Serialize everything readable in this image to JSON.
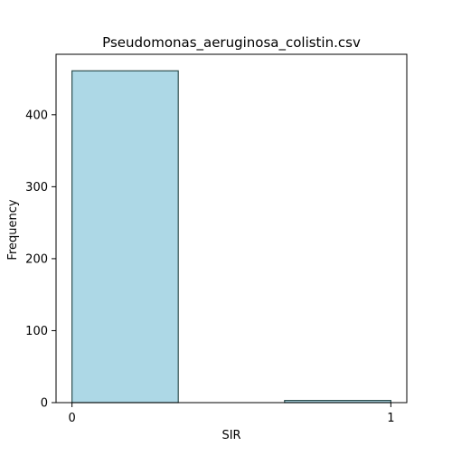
{
  "chart_data": {
    "type": "bar",
    "title": "Pseudomonas_aeruginosa_colistin.csv",
    "xlabel": "SIR",
    "ylabel": "Frequency",
    "bins": [
      {
        "start": 0.0,
        "end": 0.3333,
        "count": 461
      },
      {
        "start": 0.3333,
        "end": 0.6667,
        "count": 0
      },
      {
        "start": 0.6667,
        "end": 1.0,
        "count": 3
      }
    ],
    "xlim": [
      -0.05,
      1.05
    ],
    "ylim": [
      0,
      484
    ],
    "xticks": [
      0,
      1
    ],
    "yticks": [
      0,
      100,
      200,
      300,
      400
    ],
    "grid": false,
    "bar_color": "#add8e6",
    "edge_color": "#2f4f4f"
  }
}
